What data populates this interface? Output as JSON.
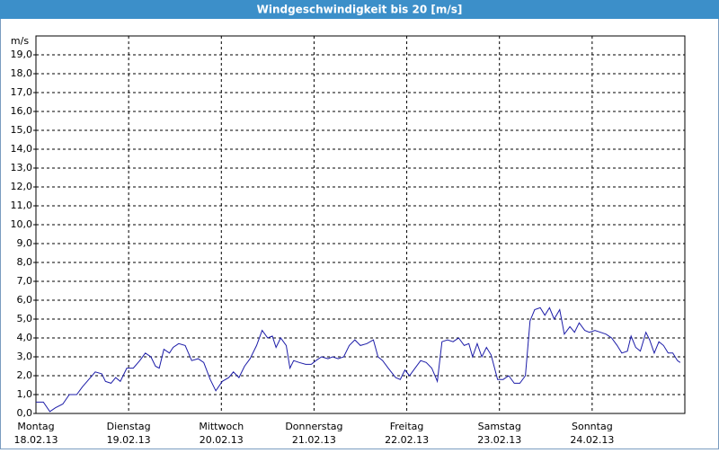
{
  "chart_data": {
    "type": "line",
    "title": "Windgeschwindigkeit bis 20 [m/s]",
    "y_unit": "m/s",
    "xlim": [
      0,
      7
    ],
    "ylim": [
      0,
      20
    ],
    "grid": true,
    "xticks": [
      {
        "value": 0,
        "label": "Montag"
      },
      {
        "value": 1,
        "label": "Dienstag"
      },
      {
        "value": 2,
        "label": "Mittwoch"
      },
      {
        "value": 3,
        "label": "Donnerstag"
      },
      {
        "value": 4,
        "label": "Freitag"
      },
      {
        "value": 5,
        "label": "Samstag"
      },
      {
        "value": 6,
        "label": "Sonntag"
      }
    ],
    "xtick_dates": [
      "18.02.13",
      "19.02.13",
      "20.02.13",
      "21.02.13",
      "22.02.13",
      "23.02.13",
      "24.02.13"
    ],
    "yticks": [
      {
        "value": 0,
        "label": "0,0"
      },
      {
        "value": 1,
        "label": "1,0"
      },
      {
        "value": 2,
        "label": "2,0"
      },
      {
        "value": 3,
        "label": "3,0"
      },
      {
        "value": 4,
        "label": "4,0"
      },
      {
        "value": 5,
        "label": "5,0"
      },
      {
        "value": 6,
        "label": "6,0"
      },
      {
        "value": 7,
        "label": "7,0"
      },
      {
        "value": 8,
        "label": "8,0"
      },
      {
        "value": 9,
        "label": "9,0"
      },
      {
        "value": 10,
        "label": "10,0"
      },
      {
        "value": 11,
        "label": "11,0"
      },
      {
        "value": 12,
        "label": "12,0"
      },
      {
        "value": 13,
        "label": "13,0"
      },
      {
        "value": 14,
        "label": "14,0"
      },
      {
        "value": 15,
        "label": "15,0"
      },
      {
        "value": 16,
        "label": "16,0"
      },
      {
        "value": 17,
        "label": "17,0"
      },
      {
        "value": 18,
        "label": "18,0"
      },
      {
        "value": 19,
        "label": "19,0"
      }
    ],
    "color": "#1c1ca8",
    "x": [
      0,
      0.08,
      0.15,
      0.21,
      0.29,
      0.36,
      0.44,
      0.5,
      0.57,
      0.64,
      0.71,
      0.75,
      0.81,
      0.86,
      0.91,
      0.98,
      1.05,
      1.12,
      1.18,
      1.24,
      1.29,
      1.33,
      1.38,
      1.44,
      1.48,
      1.54,
      1.61,
      1.68,
      1.75,
      1.81,
      1.88,
      1.94,
      2.01,
      2.08,
      2.13,
      2.19,
      2.25,
      2.31,
      2.38,
      2.44,
      2.5,
      2.55,
      2.59,
      2.64,
      2.7,
      2.74,
      2.78,
      2.84,
      2.91,
      2.97,
      3.02,
      3.08,
      3.15,
      3.2,
      3.26,
      3.32,
      3.38,
      3.44,
      3.5,
      3.57,
      3.64,
      3.69,
      3.74,
      3.8,
      3.88,
      3.93,
      3.98,
      4.03,
      4.09,
      4.15,
      4.21,
      4.27,
      4.33,
      4.38,
      4.44,
      4.5,
      4.56,
      4.62,
      4.67,
      4.71,
      4.76,
      4.81,
      4.86,
      4.91,
      4.98,
      5.04,
      5.1,
      5.16,
      5.22,
      5.28,
      5.33,
      5.38,
      5.44,
      5.49,
      5.54,
      5.59,
      5.65,
      5.7,
      5.76,
      5.81,
      5.86,
      5.92,
      5.97,
      6.03,
      6.09,
      6.15,
      6.21,
      6.27,
      6.32,
      6.38,
      6.42,
      6.47,
      6.52,
      6.58,
      6.62,
      6.67,
      6.72,
      6.77,
      6.82,
      6.87,
      6.92,
      6.95
    ],
    "values": [
      0.6,
      0.6,
      0.1,
      0.3,
      0.5,
      1.0,
      1.0,
      1.4,
      1.8,
      2.2,
      2.1,
      1.7,
      1.6,
      1.9,
      1.7,
      2.4,
      2.4,
      2.8,
      3.2,
      3.0,
      2.5,
      2.4,
      3.4,
      3.2,
      3.5,
      3.7,
      3.6,
      2.8,
      2.9,
      2.7,
      1.8,
      1.2,
      1.7,
      1.9,
      2.2,
      1.9,
      2.5,
      2.9,
      3.6,
      4.4,
      4.0,
      4.1,
      3.5,
      4.0,
      3.6,
      2.4,
      2.8,
      2.7,
      2.6,
      2.6,
      2.8,
      3.0,
      2.9,
      3.0,
      2.9,
      3.0,
      3.6,
      3.9,
      3.6,
      3.7,
      3.9,
      3.0,
      2.8,
      2.4,
      1.9,
      1.8,
      2.3,
      2.0,
      2.4,
      2.8,
      2.7,
      2.4,
      1.7,
      3.8,
      3.9,
      3.8,
      4.0,
      3.6,
      3.7,
      3.0,
      3.7,
      3.0,
      3.5,
      3.1,
      1.8,
      1.8,
      2.0,
      1.6,
      1.6,
      2.0,
      4.9,
      5.5,
      5.6,
      5.2,
      5.6,
      5.0,
      5.5,
      4.2,
      4.6,
      4.3,
      4.8,
      4.4,
      4.3,
      4.4,
      4.3,
      4.2,
      4.0,
      3.6,
      3.2,
      3.3,
      4.1,
      3.5,
      3.3,
      4.3,
      3.9,
      3.2,
      3.8,
      3.6,
      3.2,
      3.2,
      2.8,
      2.7
    ]
  }
}
